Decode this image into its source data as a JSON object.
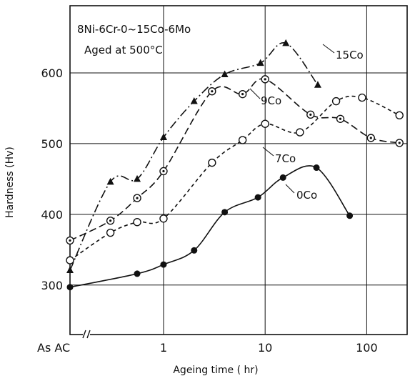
{
  "chart_data": {
    "type": "scatter",
    "annotation_lines": [
      "8Ni-6Cr-0~15Co-6Mo",
      "Aged at 500°C"
    ],
    "xlabel": "Ageing time  ( hr)",
    "ylabel": "Hardness  (Hv)",
    "x_scale": "log",
    "xlim": [
      0.12,
      250
    ],
    "ylim": [
      230,
      695
    ],
    "x_ticks": [
      {
        "value": 0.12,
        "label": "As AC"
      },
      {
        "value": 1,
        "label": "1"
      },
      {
        "value": 10,
        "label": "10"
      },
      {
        "value": 100,
        "label": "100"
      }
    ],
    "y_ticks": [
      {
        "value": 300,
        "label": "300"
      },
      {
        "value": 400,
        "label": "400"
      },
      {
        "value": 500,
        "label": "500"
      },
      {
        "value": 600,
        "label": "600"
      }
    ],
    "grid": true,
    "series": [
      {
        "name": "15Co",
        "marker": "filled-triangle",
        "line_style": "dash-dot",
        "points": [
          [
            0.12,
            321
          ],
          [
            0.3,
            446
          ],
          [
            0.55,
            450
          ],
          [
            1,
            509
          ],
          [
            2,
            560
          ],
          [
            4,
            598
          ],
          [
            9,
            614
          ],
          [
            16,
            642
          ],
          [
            33,
            583
          ]
        ]
      },
      {
        "name": "9Co",
        "marker": "dotted-circle",
        "line_style": "long-dash",
        "points": [
          [
            0.12,
            363
          ],
          [
            0.3,
            391
          ],
          [
            0.55,
            423
          ],
          [
            1,
            461
          ],
          [
            3,
            574
          ],
          [
            6,
            570
          ],
          [
            10,
            591
          ],
          [
            28,
            541
          ],
          [
            55,
            535
          ],
          [
            110,
            508
          ],
          [
            210,
            501
          ]
        ]
      },
      {
        "name": "7Co",
        "marker": "open-circle",
        "line_style": "short-dash",
        "points": [
          [
            0.12,
            335
          ],
          [
            0.3,
            374
          ],
          [
            0.55,
            389
          ],
          [
            1,
            394
          ],
          [
            3,
            473
          ],
          [
            6,
            505
          ],
          [
            10,
            528
          ],
          [
            22,
            516
          ],
          [
            50,
            560
          ],
          [
            90,
            565
          ],
          [
            210,
            540
          ]
        ]
      },
      {
        "name": "0Co",
        "marker": "filled-circle",
        "line_style": "solid",
        "points": [
          [
            0.12,
            297
          ],
          [
            0.55,
            316
          ],
          [
            1,
            329
          ],
          [
            2,
            349
          ],
          [
            4,
            403
          ],
          [
            8.5,
            424
          ],
          [
            15,
            452
          ],
          [
            32,
            466
          ],
          [
            68,
            398
          ]
        ]
      }
    ]
  }
}
